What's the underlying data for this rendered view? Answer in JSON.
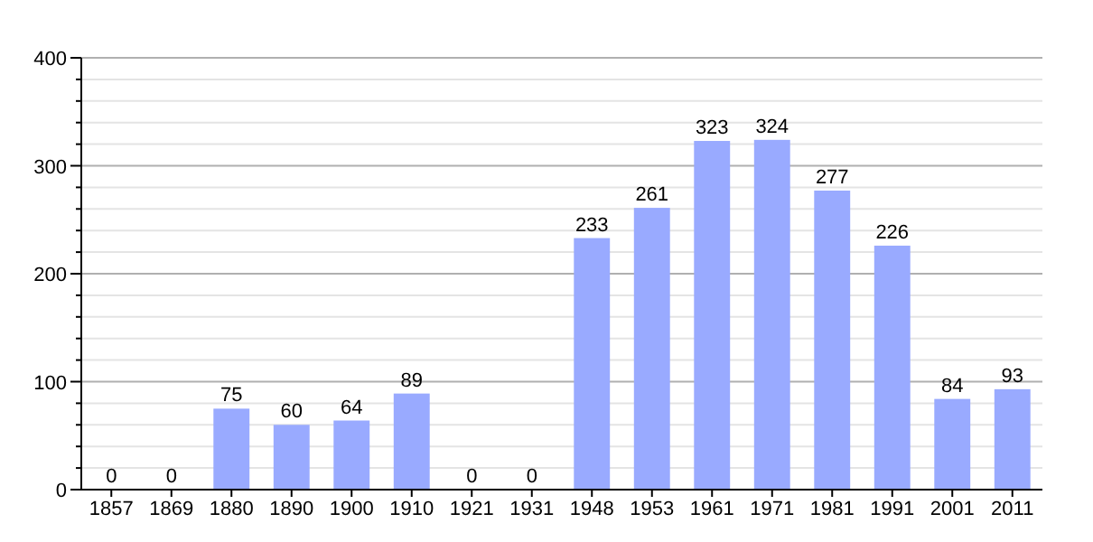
{
  "chart_data": {
    "type": "bar",
    "categories": [
      "1857",
      "1869",
      "1880",
      "1890",
      "1900",
      "1910",
      "1921",
      "1931",
      "1948",
      "1953",
      "1961",
      "1971",
      "1981",
      "1991",
      "2001",
      "2011"
    ],
    "values": [
      0,
      0,
      75,
      60,
      64,
      89,
      0,
      0,
      233,
      261,
      323,
      324,
      277,
      226,
      84,
      93
    ],
    "color": "#99aaff",
    "ylim": [
      0,
      400
    ],
    "yticks": [
      0,
      {
        "value": 20,
        "label": null
      },
      {
        "value": 40,
        "label": null
      },
      {
        "value": 60,
        "label": null
      },
      {
        "value": 80,
        "label": null
      },
      100,
      {
        "value": 120,
        "label": null
      },
      {
        "value": 140,
        "label": null
      },
      {
        "value": 160,
        "label": null
      },
      {
        "value": 180,
        "label": null
      },
      200,
      {
        "value": 220,
        "label": null
      },
      {
        "value": 240,
        "label": null
      },
      {
        "value": 260,
        "label": null
      },
      {
        "value": 280,
        "label": null
      },
      300,
      {
        "value": 320,
        "label": null
      },
      {
        "value": 340,
        "label": null
      },
      {
        "value": 360,
        "label": null
      },
      {
        "value": 380,
        "label": null
      },
      400
    ],
    "grid": true,
    "data_labels": true
  }
}
